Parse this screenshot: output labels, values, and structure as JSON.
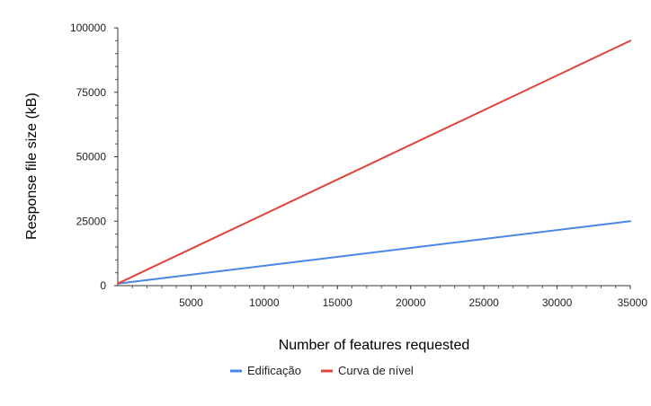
{
  "chart_data": {
    "type": "line",
    "xlabel": "Number of features requested",
    "ylabel": "Response file size (kB)",
    "xlim": [
      0,
      35000
    ],
    "ylim": [
      0,
      100000
    ],
    "x_ticks": [
      5000,
      10000,
      15000,
      20000,
      25000,
      30000,
      35000
    ],
    "x_tick_labels": [
      "5000",
      "10000",
      "15000",
      "20000",
      "25000",
      "30000",
      "35000"
    ],
    "y_ticks": [
      0,
      25000,
      50000,
      75000,
      100000
    ],
    "y_tick_labels": [
      "0",
      "25000",
      "50000",
      "75000",
      "100000"
    ],
    "grid": false,
    "legend_position": "bottom",
    "series": [
      {
        "name": "Edificação",
        "color": "#4a86e8",
        "x": [
          0,
          35000
        ],
        "y": [
          800,
          25000
        ]
      },
      {
        "name": "Curva de nível",
        "color": "#e0443a",
        "x": [
          0,
          35000
        ],
        "y": [
          800,
          95000
        ]
      }
    ]
  }
}
